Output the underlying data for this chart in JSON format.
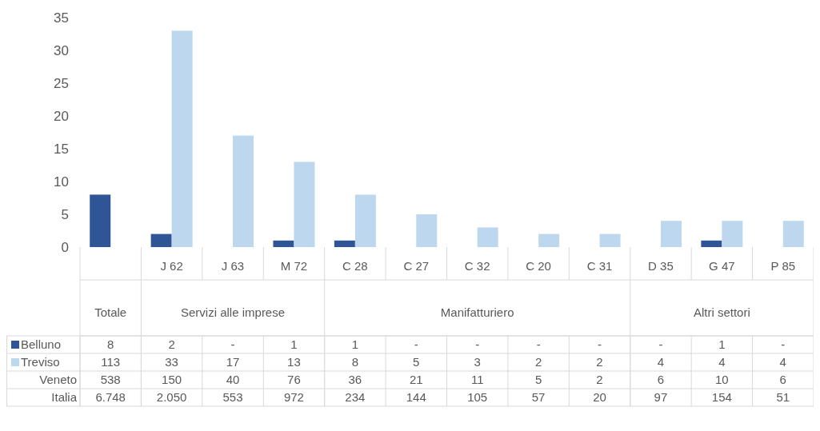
{
  "chart_data": {
    "type": "bar",
    "categories": [
      null,
      "J 62",
      "J 63",
      "M 72",
      "C 28",
      "C 27",
      "C 32",
      "C 20",
      "C 31",
      "D 35",
      "G 47",
      "P 85"
    ],
    "annotations": [
      "Totale",
      "Servizi alle imprese",
      "Manifatturiero",
      "Altri settori"
    ],
    "ylim": [
      0,
      35
    ],
    "yticks": [
      0,
      5,
      10,
      15,
      20,
      25,
      30,
      35
    ],
    "grid": false,
    "data_labels": true,
    "legend": "bottom",
    "series": [
      {
        "name": "Belluno",
        "color": "#2f5597",
        "values": [
          8,
          2,
          null,
          1,
          1,
          null,
          null,
          null,
          null,
          null,
          1,
          null
        ],
        "value_labels": [
          "8",
          "2",
          "-",
          "1",
          "1",
          "-",
          "-",
          "-",
          "-",
          "-",
          "1",
          "-"
        ]
      },
      {
        "name": "Treviso",
        "color": "#bdd7ee",
        "values": [
          null,
          33,
          17,
          13,
          8,
          5,
          3,
          2,
          2,
          4,
          4,
          4
        ],
        "value_labels": [
          "113",
          "33",
          "17",
          "13",
          "8",
          "5",
          "3",
          "2",
          "2",
          "4",
          "4",
          "4"
        ]
      },
      {
        "name": "Veneto",
        "type": "other",
        "values": [
          null,
          null,
          null,
          null,
          null,
          null,
          null,
          null,
          null,
          null,
          null,
          null
        ],
        "value_labels": [
          "538",
          "150",
          "40",
          "76",
          "36",
          "21",
          "11",
          "5",
          "2",
          "6",
          "10",
          "6"
        ]
      },
      {
        "name": "Italia",
        "type": "other",
        "values": [
          null,
          null,
          null,
          null,
          null,
          null,
          null,
          null,
          null,
          null,
          null,
          null
        ],
        "value_labels": [
          "6.748",
          "2.050",
          "553",
          "972",
          "234",
          "144",
          "105",
          "57",
          "20",
          "97",
          "154",
          "51"
        ]
      }
    ]
  }
}
